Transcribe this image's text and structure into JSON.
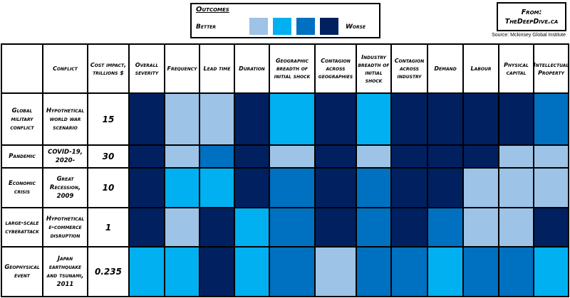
{
  "legend": {
    "title": "Outcomes",
    "better_label": "Better",
    "worse_label": "Worse",
    "colors": [
      "#9dc3e6",
      "#00b0f0",
      "#0070c0",
      "#002060"
    ]
  },
  "source_box": {
    "line1": "From:",
    "line2": "TheDeepDive.ca"
  },
  "source_text": "Source: Mckinsey Global Institute",
  "chart_data": {
    "type": "heatmap",
    "scale": "1 = Better ... 4 = Worse",
    "columns": [
      "Conflict",
      "Cost impact, trillions $",
      "Overall severity",
      "Frequency",
      "Lead time",
      "Duration",
      "Geographic breadth of initial shock",
      "Contagion across geographies",
      "Industry breadth of initial shock",
      "Contagion across industry",
      "Demand",
      "Labour",
      "Physical capital",
      "Intellectual Property"
    ],
    "rows": [
      {
        "name": "Global military conflict",
        "conflict": "Hypothetical world war scenario",
        "cost": "15",
        "values": [
          4,
          1,
          1,
          4,
          2,
          4,
          2,
          4,
          4,
          4,
          4,
          3
        ]
      },
      {
        "name": "Pandemic",
        "conflict": "COVID-19, 2020-",
        "cost": "30",
        "values": [
          4,
          1,
          3,
          4,
          1,
          4,
          1,
          4,
          4,
          4,
          1,
          1
        ]
      },
      {
        "name": "Economic crisis",
        "conflict": "Great Recession, 2009",
        "cost": "10",
        "values": [
          4,
          2,
          2,
          4,
          3,
          4,
          3,
          4,
          4,
          1,
          1,
          1
        ]
      },
      {
        "name": "large-scale cyberattack",
        "conflict": "Hypothetical e-commerce disruption",
        "cost": "1",
        "values": [
          4,
          1,
          4,
          2,
          3,
          4,
          3,
          4,
          3,
          1,
          1,
          4
        ]
      },
      {
        "name": "Geophysical event",
        "conflict": "Japan earthquake and tsunami, 2011",
        "cost": "0.235",
        "values": [
          2,
          2,
          4,
          2,
          3,
          1,
          3,
          3,
          2,
          3,
          3,
          2
        ]
      }
    ]
  }
}
